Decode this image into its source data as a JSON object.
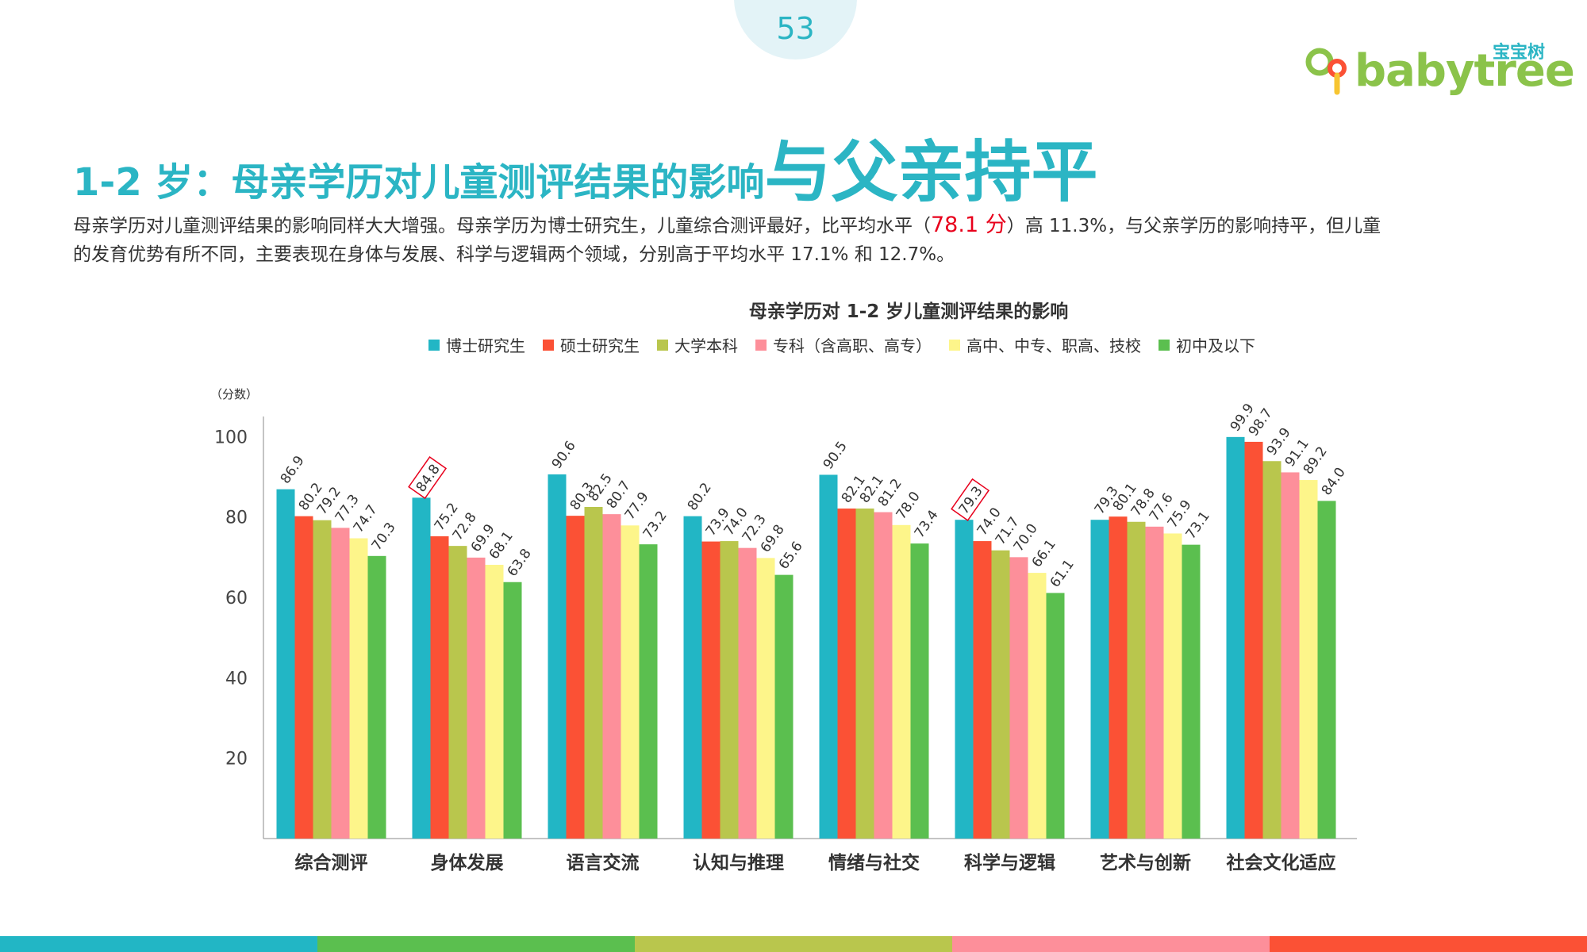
{
  "page": {
    "number": "53"
  },
  "brand": {
    "cn": "宝宝树",
    "en": "babytree"
  },
  "headline": {
    "main": "1-2 岁：母亲学历对儿童测评结果的影响",
    "emphasis": "与父亲持平"
  },
  "summary": {
    "part1": "母亲学历对儿童测评结果的影响同样大大增强。母亲学历为博士研究生，儿童综合测评最好，比平均水平（",
    "highlight": "78.1 分",
    "part2": "）高 11.3%，与父亲学历的影响持平，但儿童的发育优势有所不同，主要表现在身体与发展、科学与逻辑两个领域，分别高于平均水平 17.1% 和 12.7%。"
  },
  "colors": {
    "accent": "#2bb5c4",
    "highlight": "#e8001c",
    "series": [
      "#22b6c5",
      "#fb5135",
      "#b9c64d",
      "#fd8f9a",
      "#fdf58a",
      "#5bbf4f"
    ],
    "bottom_bar": [
      "#22b6c5",
      "#5bbf4f",
      "#b9c64d",
      "#fd8f9a",
      "#fb5135"
    ]
  },
  "chart_data": {
    "type": "bar",
    "title": "母亲学历对 1-2 岁儿童测评结果的影响",
    "ylabel": "（分数）",
    "ylim": [
      0,
      105
    ],
    "yticks": [
      20,
      40,
      60,
      80,
      100
    ],
    "legend_position": "top",
    "grid": false,
    "categories": [
      "综合测评",
      "身体发展",
      "语言交流",
      "认知与推理",
      "情绪与社交",
      "科学与逻辑",
      "艺术与创新",
      "社会文化适应"
    ],
    "series": [
      {
        "name": "博士研究生",
        "values": [
          86.9,
          84.8,
          90.6,
          80.2,
          90.5,
          79.3,
          79.3,
          99.9
        ]
      },
      {
        "name": "硕士研究生",
        "values": [
          80.2,
          75.2,
          80.3,
          73.9,
          82.1,
          74.0,
          80.1,
          98.7
        ]
      },
      {
        "name": "大学本科",
        "values": [
          79.2,
          72.8,
          82.5,
          74.0,
          82.1,
          71.7,
          78.8,
          93.9
        ]
      },
      {
        "name": "专科（含高职、高专）",
        "values": [
          77.3,
          69.9,
          80.7,
          72.3,
          81.2,
          70.0,
          77.6,
          91.1
        ]
      },
      {
        "name": "高中、中专、职高、技校",
        "values": [
          74.7,
          68.1,
          77.9,
          69.8,
          78.0,
          66.1,
          75.9,
          89.2
        ]
      },
      {
        "name": "初中及以下",
        "values": [
          70.3,
          63.8,
          73.2,
          65.6,
          73.4,
          61.1,
          73.1,
          84.0
        ]
      }
    ],
    "highlighted_labels": [
      {
        "category": "身体发展",
        "series": "博士研究生"
      },
      {
        "category": "科学与逻辑",
        "series": "博士研究生"
      }
    ]
  }
}
